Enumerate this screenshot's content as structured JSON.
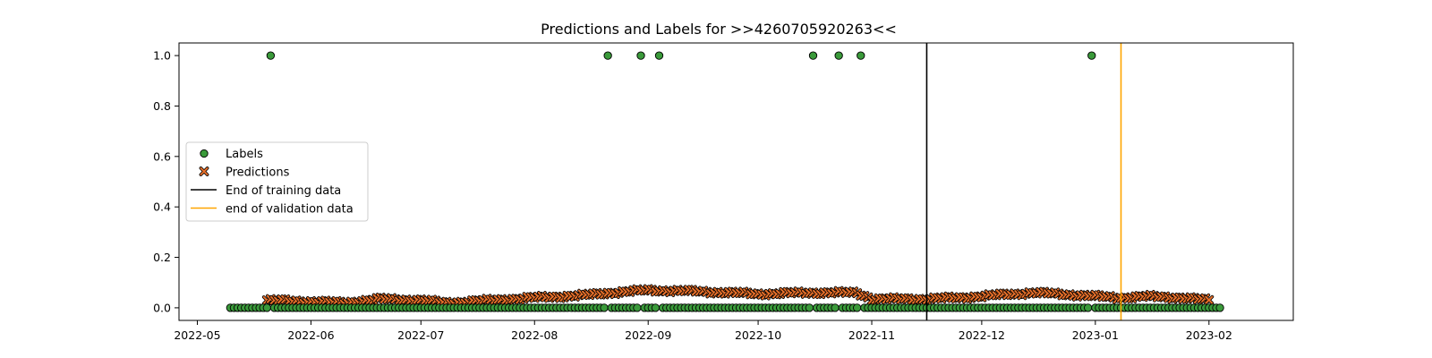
{
  "chart_data": {
    "type": "scatter",
    "title": "Predictions and Labels for >>4260705920263<<",
    "xlabel": "",
    "ylabel": "",
    "x_range": [
      "2022-04-26",
      "2023-02-24"
    ],
    "y_range": [
      -0.05,
      1.05
    ],
    "grid": false,
    "legend_position": "center-left",
    "x_tick_labels": [
      "2022-05",
      "2022-06",
      "2022-07",
      "2022-08",
      "2022-09",
      "2022-10",
      "2022-11",
      "2022-12",
      "2023-01",
      "2023-02"
    ],
    "y_tick_labels": [
      "0.0",
      "0.2",
      "0.4",
      "0.6",
      "0.8",
      "1.0"
    ],
    "series": [
      {
        "name": "Labels",
        "marker": "circle",
        "color": "#3a9a3a",
        "edgecolor": "#000000",
        "date_start": "2022-05-10",
        "date_end": "2023-02-04",
        "baseline_value": 0.0,
        "positive_dates": [
          "2022-05-21",
          "2022-08-21",
          "2022-08-30",
          "2022-09-04",
          "2022-10-16",
          "2022-10-23",
          "2022-10-29",
          "2022-12-31"
        ],
        "positive_value": 1.0
      },
      {
        "name": "Predictions",
        "marker": "x",
        "color": "#e8702a",
        "edgecolor": "#000000",
        "date_start": "2022-05-20",
        "date_end": "2023-02-01",
        "points": [
          [
            "2022-05-20",
            0.03
          ],
          [
            "2022-06-01",
            0.025
          ],
          [
            "2022-06-10",
            0.02
          ],
          [
            "2022-06-20",
            0.035
          ],
          [
            "2022-07-01",
            0.03
          ],
          [
            "2022-07-08",
            0.02
          ],
          [
            "2022-07-20",
            0.03
          ],
          [
            "2022-08-01",
            0.04
          ],
          [
            "2022-08-15",
            0.05
          ],
          [
            "2022-08-22",
            0.06
          ],
          [
            "2022-09-01",
            0.07
          ],
          [
            "2022-09-15",
            0.065
          ],
          [
            "2022-10-01",
            0.055
          ],
          [
            "2022-10-15",
            0.06
          ],
          [
            "2022-10-28",
            0.06
          ],
          [
            "2022-11-01",
            0.035
          ],
          [
            "2022-11-15",
            0.035
          ],
          [
            "2022-11-25",
            0.04
          ],
          [
            "2022-12-05",
            0.05
          ],
          [
            "2022-12-15",
            0.06
          ],
          [
            "2022-12-28",
            0.05
          ],
          [
            "2023-01-07",
            0.04
          ],
          [
            "2023-01-15",
            0.045
          ],
          [
            "2023-01-25",
            0.04
          ],
          [
            "2023-02-01",
            0.03
          ]
        ]
      },
      {
        "name": "End of training data",
        "type": "vline",
        "color": "#000000",
        "x": "2022-11-16"
      },
      {
        "name": "end of validation data",
        "type": "vline",
        "color": "#ffa500",
        "x": "2023-01-08"
      }
    ]
  }
}
